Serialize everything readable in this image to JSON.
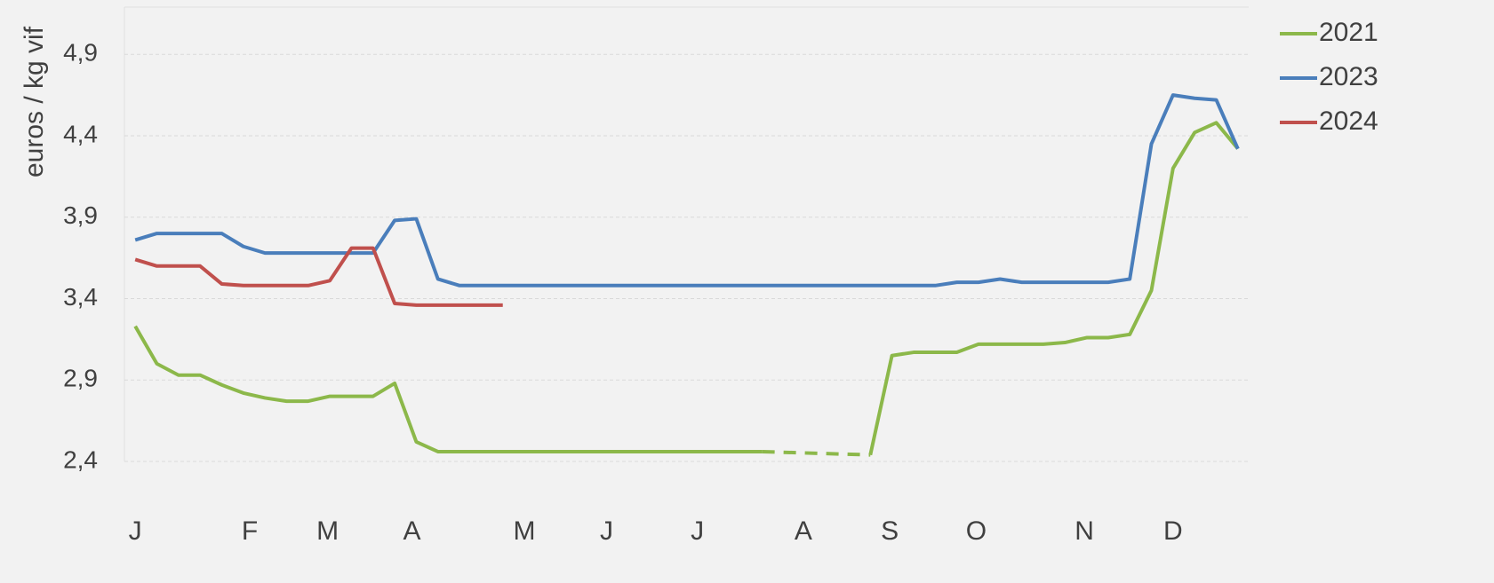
{
  "chart_data": {
    "type": "line",
    "y_label": "euros / kg vif",
    "x": [
      1,
      2,
      3,
      4,
      5,
      6,
      7,
      8,
      9,
      10,
      11,
      12,
      13,
      14,
      15,
      16,
      17,
      18,
      19,
      20,
      21,
      22,
      23,
      24,
      25,
      26,
      27,
      28,
      29,
      30,
      31,
      32,
      33,
      34,
      35,
      36,
      37,
      38,
      39,
      40,
      41,
      42,
      43,
      44,
      45,
      46,
      47,
      48,
      49,
      50,
      51,
      52
    ],
    "xlim": [
      0.5,
      52.5
    ],
    "xticks": [
      {
        "value": 1,
        "label": "J"
      },
      {
        "value": 6.3,
        "label": "F"
      },
      {
        "value": 9.9,
        "label": "M"
      },
      {
        "value": 13.8,
        "label": "A"
      },
      {
        "value": 19,
        "label": "M"
      },
      {
        "value": 22.8,
        "label": "J"
      },
      {
        "value": 27,
        "label": "J"
      },
      {
        "value": 31.9,
        "label": "A"
      },
      {
        "value": 35.9,
        "label": "S"
      },
      {
        "value": 39.9,
        "label": "O"
      },
      {
        "value": 44.9,
        "label": "N"
      },
      {
        "value": 49,
        "label": "D"
      }
    ],
    "ylim": [
      2.4,
      5.19
    ],
    "yticks": [
      {
        "value": 2.4,
        "label": "2,4"
      },
      {
        "value": 2.9,
        "label": "2,9"
      },
      {
        "value": 3.4,
        "label": "3,4"
      },
      {
        "value": 3.9,
        "label": "3,9"
      },
      {
        "value": 4.4,
        "label": "4,4"
      },
      {
        "value": 4.9,
        "label": "4,9"
      }
    ],
    "grid": true,
    "gap_style": "dashed",
    "legend": "top-right",
    "series": [
      {
        "name": "2021",
        "color": "#8cb84a",
        "values": [
          3.23,
          3.0,
          2.93,
          2.93,
          2.87,
          2.82,
          2.79,
          2.77,
          2.77,
          2.8,
          2.8,
          2.8,
          2.88,
          2.52,
          2.46,
          2.46,
          2.46,
          2.46,
          2.46,
          2.46,
          2.46,
          2.46,
          2.46,
          2.46,
          2.46,
          2.46,
          2.46,
          2.46,
          2.46,
          2.46,
          null,
          null,
          null,
          null,
          2.44,
          3.05,
          3.07,
          3.07,
          3.07,
          3.12,
          3.12,
          3.12,
          3.12,
          3.13,
          3.16,
          3.16,
          3.18,
          3.45,
          4.2,
          4.42,
          4.48,
          4.32
        ]
      },
      {
        "name": "2023",
        "color": "#4a7ebb",
        "values": [
          3.76,
          3.8,
          3.8,
          3.8,
          3.8,
          3.72,
          3.68,
          3.68,
          3.68,
          3.68,
          3.68,
          3.68,
          3.88,
          3.89,
          3.52,
          3.48,
          3.48,
          3.48,
          3.48,
          3.48,
          3.48,
          3.48,
          3.48,
          3.48,
          3.48,
          3.48,
          3.48,
          3.48,
          3.48,
          3.48,
          3.48,
          3.48,
          3.48,
          3.48,
          3.48,
          3.48,
          3.48,
          3.48,
          3.5,
          3.5,
          3.52,
          3.5,
          3.5,
          3.5,
          3.5,
          3.5,
          3.52,
          4.35,
          4.65,
          4.63,
          4.62,
          4.32
        ]
      },
      {
        "name": "2024",
        "color": "#c0504d",
        "values": [
          3.64,
          3.6,
          3.6,
          3.6,
          3.49,
          3.48,
          3.48,
          3.48,
          3.48,
          3.51,
          3.71,
          3.71,
          3.37,
          3.36,
          3.36,
          3.36,
          3.36,
          3.36,
          null,
          null,
          null,
          null,
          null,
          null,
          null,
          null,
          null,
          null,
          null,
          null,
          null,
          null,
          null,
          null,
          null,
          null,
          null,
          null,
          null,
          null,
          null,
          null,
          null,
          null,
          null,
          null,
          null,
          null,
          null,
          null,
          null,
          null
        ]
      }
    ]
  }
}
